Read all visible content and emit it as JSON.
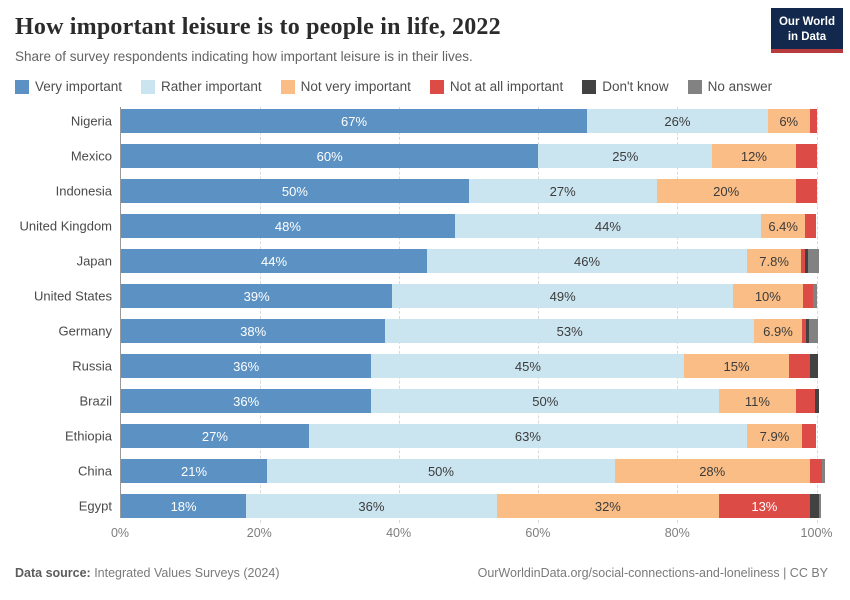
{
  "header": {
    "title": "How important leisure is to people in life, 2022",
    "subtitle": "Share of survey respondents indicating how important leisure is in their lives.",
    "logo": {
      "line1": "Our World",
      "line2": "in Data",
      "bg_color": "#12294d",
      "accent_color": "#b63a3e"
    }
  },
  "chart_data": {
    "type": "bar",
    "orientation": "horizontal-stacked",
    "title": "How important leisure is to people in life, 2022",
    "subtitle": "Share of survey respondents indicating how important leisure is in their lives.",
    "unit": "%",
    "xlim": [
      0,
      101.5
    ],
    "grid": true,
    "legend_position": "top",
    "categories": [
      "Nigeria",
      "Mexico",
      "Indonesia",
      "United Kingdom",
      "Japan",
      "United States",
      "Germany",
      "Russia",
      "Brazil",
      "Ethiopia",
      "China",
      "Egypt"
    ],
    "series": [
      {
        "name": "Very important",
        "color": "#5b92c3",
        "text_color": "#ffffff",
        "values": [
          67,
          60,
          50,
          48,
          44,
          39,
          38,
          36,
          36,
          27,
          21,
          18
        ],
        "labels": [
          "67%",
          "60%",
          "50%",
          "48%",
          "44%",
          "39%",
          "38%",
          "36%",
          "36%",
          "27%",
          "21%",
          "18%"
        ]
      },
      {
        "name": "Rather important",
        "color": "#cbe5f0",
        "text_color": "#3b3b3b",
        "values": [
          26,
          25,
          27,
          44,
          46,
          49,
          53,
          45,
          50,
          63,
          50,
          36
        ],
        "labels": [
          "26%",
          "25%",
          "27%",
          "44%",
          "46%",
          "49%",
          "53%",
          "45%",
          "50%",
          "63%",
          "50%",
          "36%"
        ]
      },
      {
        "name": "Not very important",
        "color": "#fabd85",
        "text_color": "#3b3b3b",
        "values": [
          6,
          12,
          20,
          6.4,
          7.8,
          10,
          6.9,
          15,
          11,
          7.9,
          28,
          32
        ],
        "labels": [
          "6%",
          "12%",
          "20%",
          "6.4%",
          "7.8%",
          "10%",
          "6.9%",
          "15%",
          "11%",
          "7.9%",
          "28%",
          "32%"
        ]
      },
      {
        "name": "Not at all important",
        "color": "#dd4b47",
        "text_color": "#ffffff",
        "values": [
          1,
          3,
          3,
          1.5,
          0.5,
          1.5,
          0.6,
          3,
          2.8,
          2,
          1.8,
          13
        ],
        "labels": [
          null,
          null,
          null,
          null,
          null,
          null,
          null,
          null,
          null,
          null,
          null,
          "13%"
        ]
      },
      {
        "name": "Don't know",
        "color": "#424242",
        "text_color": "#ffffff",
        "values": [
          0,
          0,
          0,
          0,
          0.4,
          0,
          0.4,
          1.2,
          0.6,
          0,
          0,
          1.4
        ],
        "labels": [
          null,
          null,
          null,
          null,
          null,
          null,
          null,
          null,
          null,
          null,
          null,
          null
        ]
      },
      {
        "name": "No answer",
        "color": "#828282",
        "text_color": "#ffffff",
        "values": [
          0,
          0,
          0,
          0,
          1.6,
          0.5,
          1.3,
          0,
          0,
          0,
          0.4,
          0.3
        ],
        "labels": [
          null,
          null,
          null,
          null,
          null,
          null,
          null,
          null,
          null,
          null,
          null,
          null
        ]
      }
    ],
    "x_ticks": [
      {
        "label": "0%",
        "value": 0
      },
      {
        "label": "20%",
        "value": 20
      },
      {
        "label": "40%",
        "value": 40
      },
      {
        "label": "60%",
        "value": 60
      },
      {
        "label": "80%",
        "value": 80
      },
      {
        "label": "100%",
        "value": 100
      }
    ]
  },
  "footer": {
    "datasource_label": "Data source:",
    "datasource_value": " Integrated Values Surveys (2024)",
    "credit": "OurWorldinData.org/social-connections-and-loneliness | CC BY"
  }
}
